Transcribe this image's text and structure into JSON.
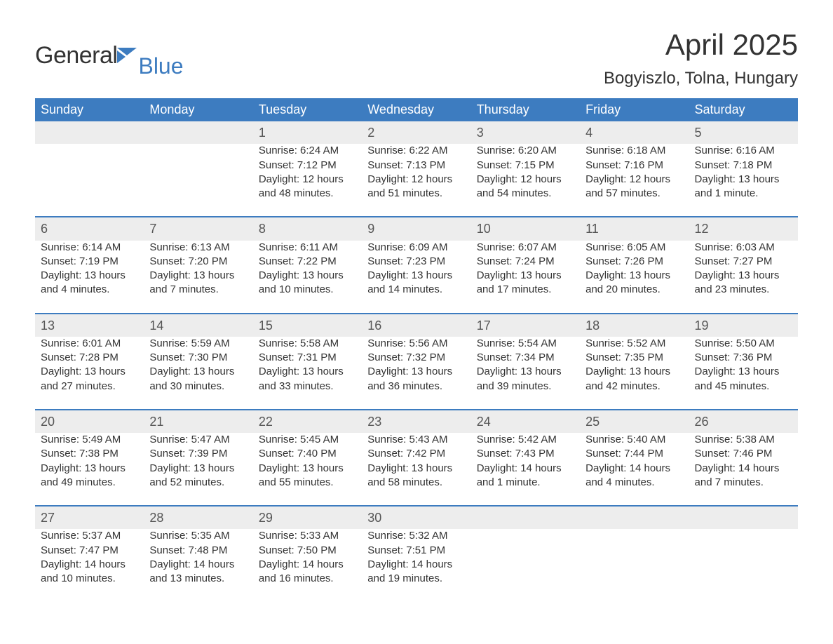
{
  "logo": {
    "word1": "General",
    "word2": "Blue",
    "accent_color": "#3d7cc0",
    "text_color": "#333333"
  },
  "title": "April 2025",
  "location": "Bogyiszlo, Tolna, Hungary",
  "weekday_header_bg": "#3d7cc0",
  "weekday_header_fg": "#ffffff",
  "daynum_bg": "#ededed",
  "week_divider_color": "#3d7cc0",
  "weekdays": [
    "Sunday",
    "Monday",
    "Tuesday",
    "Wednesday",
    "Thursday",
    "Friday",
    "Saturday"
  ],
  "weeks": [
    [
      null,
      null,
      {
        "n": "1",
        "sr": "Sunrise: 6:24 AM",
        "ss": "Sunset: 7:12 PM",
        "dl1": "Daylight: 12 hours",
        "dl2": "and 48 minutes."
      },
      {
        "n": "2",
        "sr": "Sunrise: 6:22 AM",
        "ss": "Sunset: 7:13 PM",
        "dl1": "Daylight: 12 hours",
        "dl2": "and 51 minutes."
      },
      {
        "n": "3",
        "sr": "Sunrise: 6:20 AM",
        "ss": "Sunset: 7:15 PM",
        "dl1": "Daylight: 12 hours",
        "dl2": "and 54 minutes."
      },
      {
        "n": "4",
        "sr": "Sunrise: 6:18 AM",
        "ss": "Sunset: 7:16 PM",
        "dl1": "Daylight: 12 hours",
        "dl2": "and 57 minutes."
      },
      {
        "n": "5",
        "sr": "Sunrise: 6:16 AM",
        "ss": "Sunset: 7:18 PM",
        "dl1": "Daylight: 13 hours",
        "dl2": "and 1 minute."
      }
    ],
    [
      {
        "n": "6",
        "sr": "Sunrise: 6:14 AM",
        "ss": "Sunset: 7:19 PM",
        "dl1": "Daylight: 13 hours",
        "dl2": "and 4 minutes."
      },
      {
        "n": "7",
        "sr": "Sunrise: 6:13 AM",
        "ss": "Sunset: 7:20 PM",
        "dl1": "Daylight: 13 hours",
        "dl2": "and 7 minutes."
      },
      {
        "n": "8",
        "sr": "Sunrise: 6:11 AM",
        "ss": "Sunset: 7:22 PM",
        "dl1": "Daylight: 13 hours",
        "dl2": "and 10 minutes."
      },
      {
        "n": "9",
        "sr": "Sunrise: 6:09 AM",
        "ss": "Sunset: 7:23 PM",
        "dl1": "Daylight: 13 hours",
        "dl2": "and 14 minutes."
      },
      {
        "n": "10",
        "sr": "Sunrise: 6:07 AM",
        "ss": "Sunset: 7:24 PM",
        "dl1": "Daylight: 13 hours",
        "dl2": "and 17 minutes."
      },
      {
        "n": "11",
        "sr": "Sunrise: 6:05 AM",
        "ss": "Sunset: 7:26 PM",
        "dl1": "Daylight: 13 hours",
        "dl2": "and 20 minutes."
      },
      {
        "n": "12",
        "sr": "Sunrise: 6:03 AM",
        "ss": "Sunset: 7:27 PM",
        "dl1": "Daylight: 13 hours",
        "dl2": "and 23 minutes."
      }
    ],
    [
      {
        "n": "13",
        "sr": "Sunrise: 6:01 AM",
        "ss": "Sunset: 7:28 PM",
        "dl1": "Daylight: 13 hours",
        "dl2": "and 27 minutes."
      },
      {
        "n": "14",
        "sr": "Sunrise: 5:59 AM",
        "ss": "Sunset: 7:30 PM",
        "dl1": "Daylight: 13 hours",
        "dl2": "and 30 minutes."
      },
      {
        "n": "15",
        "sr": "Sunrise: 5:58 AM",
        "ss": "Sunset: 7:31 PM",
        "dl1": "Daylight: 13 hours",
        "dl2": "and 33 minutes."
      },
      {
        "n": "16",
        "sr": "Sunrise: 5:56 AM",
        "ss": "Sunset: 7:32 PM",
        "dl1": "Daylight: 13 hours",
        "dl2": "and 36 minutes."
      },
      {
        "n": "17",
        "sr": "Sunrise: 5:54 AM",
        "ss": "Sunset: 7:34 PM",
        "dl1": "Daylight: 13 hours",
        "dl2": "and 39 minutes."
      },
      {
        "n": "18",
        "sr": "Sunrise: 5:52 AM",
        "ss": "Sunset: 7:35 PM",
        "dl1": "Daylight: 13 hours",
        "dl2": "and 42 minutes."
      },
      {
        "n": "19",
        "sr": "Sunrise: 5:50 AM",
        "ss": "Sunset: 7:36 PM",
        "dl1": "Daylight: 13 hours",
        "dl2": "and 45 minutes."
      }
    ],
    [
      {
        "n": "20",
        "sr": "Sunrise: 5:49 AM",
        "ss": "Sunset: 7:38 PM",
        "dl1": "Daylight: 13 hours",
        "dl2": "and 49 minutes."
      },
      {
        "n": "21",
        "sr": "Sunrise: 5:47 AM",
        "ss": "Sunset: 7:39 PM",
        "dl1": "Daylight: 13 hours",
        "dl2": "and 52 minutes."
      },
      {
        "n": "22",
        "sr": "Sunrise: 5:45 AM",
        "ss": "Sunset: 7:40 PM",
        "dl1": "Daylight: 13 hours",
        "dl2": "and 55 minutes."
      },
      {
        "n": "23",
        "sr": "Sunrise: 5:43 AM",
        "ss": "Sunset: 7:42 PM",
        "dl1": "Daylight: 13 hours",
        "dl2": "and 58 minutes."
      },
      {
        "n": "24",
        "sr": "Sunrise: 5:42 AM",
        "ss": "Sunset: 7:43 PM",
        "dl1": "Daylight: 14 hours",
        "dl2": "and 1 minute."
      },
      {
        "n": "25",
        "sr": "Sunrise: 5:40 AM",
        "ss": "Sunset: 7:44 PM",
        "dl1": "Daylight: 14 hours",
        "dl2": "and 4 minutes."
      },
      {
        "n": "26",
        "sr": "Sunrise: 5:38 AM",
        "ss": "Sunset: 7:46 PM",
        "dl1": "Daylight: 14 hours",
        "dl2": "and 7 minutes."
      }
    ],
    [
      {
        "n": "27",
        "sr": "Sunrise: 5:37 AM",
        "ss": "Sunset: 7:47 PM",
        "dl1": "Daylight: 14 hours",
        "dl2": "and 10 minutes."
      },
      {
        "n": "28",
        "sr": "Sunrise: 5:35 AM",
        "ss": "Sunset: 7:48 PM",
        "dl1": "Daylight: 14 hours",
        "dl2": "and 13 minutes."
      },
      {
        "n": "29",
        "sr": "Sunrise: 5:33 AM",
        "ss": "Sunset: 7:50 PM",
        "dl1": "Daylight: 14 hours",
        "dl2": "and 16 minutes."
      },
      {
        "n": "30",
        "sr": "Sunrise: 5:32 AM",
        "ss": "Sunset: 7:51 PM",
        "dl1": "Daylight: 14 hours",
        "dl2": "and 19 minutes."
      },
      null,
      null,
      null
    ]
  ]
}
